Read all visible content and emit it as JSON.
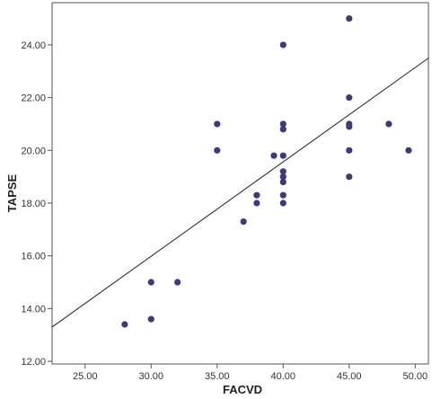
{
  "chart_data": {
    "type": "scatter",
    "xlabel": "FACVD",
    "ylabel": "TAPSE",
    "xlim": [
      22.5,
      51.0
    ],
    "ylim": [
      11.9,
      25.6
    ],
    "x_ticks": [
      "25.00",
      "30.00",
      "35.00",
      "40.00",
      "45.00",
      "50.00"
    ],
    "x_tick_values": [
      25,
      30,
      35,
      40,
      45,
      50
    ],
    "y_ticks": [
      "12.00",
      "14.00",
      "16.00",
      "18.00",
      "20.00",
      "22.00",
      "24.00"
    ],
    "y_tick_values": [
      12,
      14,
      16,
      18,
      20,
      22,
      24
    ],
    "grid": false,
    "legend": "none",
    "marker_color": "#3b3a7c",
    "line_color": "#222222",
    "points": [
      {
        "x": 28.0,
        "y": 13.4
      },
      {
        "x": 30.0,
        "y": 13.6
      },
      {
        "x": 30.0,
        "y": 15.0
      },
      {
        "x": 32.0,
        "y": 15.0
      },
      {
        "x": 35.0,
        "y": 20.0
      },
      {
        "x": 35.0,
        "y": 21.0
      },
      {
        "x": 37.0,
        "y": 17.3
      },
      {
        "x": 38.0,
        "y": 18.0
      },
      {
        "x": 38.0,
        "y": 18.3
      },
      {
        "x": 39.3,
        "y": 19.8
      },
      {
        "x": 40.0,
        "y": 18.0
      },
      {
        "x": 40.0,
        "y": 18.3
      },
      {
        "x": 40.0,
        "y": 18.8
      },
      {
        "x": 40.0,
        "y": 19.0
      },
      {
        "x": 40.0,
        "y": 19.2
      },
      {
        "x": 40.0,
        "y": 19.8
      },
      {
        "x": 40.0,
        "y": 20.8
      },
      {
        "x": 40.0,
        "y": 21.0
      },
      {
        "x": 40.0,
        "y": 24.0
      },
      {
        "x": 45.0,
        "y": 19.0
      },
      {
        "x": 45.0,
        "y": 20.0
      },
      {
        "x": 45.0,
        "y": 20.9
      },
      {
        "x": 45.0,
        "y": 21.0
      },
      {
        "x": 45.0,
        "y": 22.0
      },
      {
        "x": 45.0,
        "y": 25.0
      },
      {
        "x": 48.0,
        "y": 21.0
      },
      {
        "x": 49.5,
        "y": 20.0
      }
    ],
    "fit_line": {
      "x1": 22.5,
      "y1": 13.3,
      "x2": 51.0,
      "y2": 23.5
    }
  }
}
